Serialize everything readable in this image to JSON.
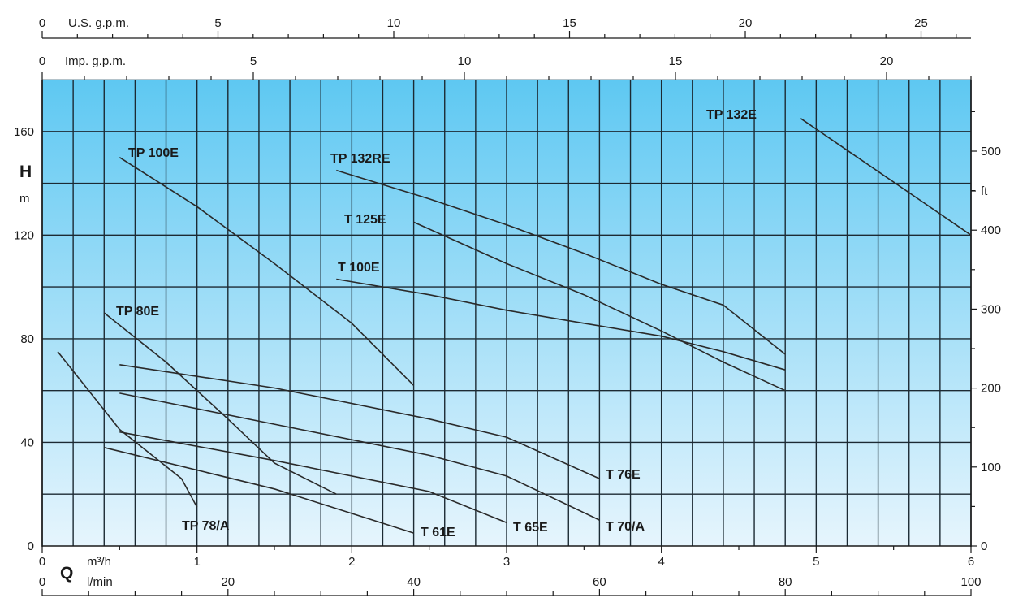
{
  "chart_data": {
    "type": "line",
    "title": "",
    "x_axes": {
      "primary": {
        "label": "Q",
        "unit": "m³/h",
        "range": [
          0,
          6
        ],
        "ticks": [
          "0",
          "1",
          "2",
          "3",
          "4",
          "5",
          "6"
        ]
      },
      "lmin": {
        "unit": "l/min",
        "range": [
          0,
          100
        ],
        "ticks": [
          "0",
          "20",
          "40",
          "60",
          "80",
          "100"
        ]
      },
      "us_gpm": {
        "unit": "U.S. g.p.m.",
        "ticks": [
          "0",
          "5",
          "10",
          "15",
          "20",
          "25"
        ]
      },
      "imp_gpm": {
        "unit": "Imp. g.p.m.",
        "ticks": [
          "0",
          "5",
          "10",
          "15",
          "20"
        ]
      }
    },
    "y_axes": {
      "left": {
        "label": "H",
        "unit": "m",
        "range": [
          0,
          180
        ],
        "ticks": [
          "0",
          "40",
          "80",
          "120",
          "160"
        ]
      },
      "right": {
        "unit": "ft",
        "ticks": [
          "0",
          "100",
          "200",
          "300",
          "400",
          "500"
        ]
      }
    },
    "grid": true,
    "series": [
      {
        "name": "TP 132E",
        "points": [
          [
            4.9,
            165
          ],
          [
            6.0,
            120
          ]
        ]
      },
      {
        "name": "TP 132RE",
        "points": [
          [
            1.9,
            145
          ],
          [
            2.5,
            134
          ],
          [
            3.0,
            124
          ],
          [
            3.5,
            113
          ],
          [
            4.0,
            101
          ],
          [
            4.4,
            93
          ],
          [
            4.8,
            74
          ]
        ]
      },
      {
        "name": "T 125E",
        "points": [
          [
            2.4,
            125
          ],
          [
            3.0,
            109
          ],
          [
            3.5,
            97
          ],
          [
            4.0,
            83
          ],
          [
            4.4,
            71
          ],
          [
            4.8,
            60
          ]
        ]
      },
      {
        "name": "T 100E",
        "points": [
          [
            1.9,
            103
          ],
          [
            2.5,
            97
          ],
          [
            3.0,
            91
          ],
          [
            3.5,
            86
          ],
          [
            4.0,
            81
          ],
          [
            4.4,
            75
          ],
          [
            4.8,
            68
          ]
        ]
      },
      {
        "name": "TP 100E",
        "points": [
          [
            0.5,
            150
          ],
          [
            1.0,
            131
          ],
          [
            1.5,
            109
          ],
          [
            2.0,
            86
          ],
          [
            2.4,
            62
          ]
        ]
      },
      {
        "name": "TP 80E",
        "points": [
          [
            0.4,
            90
          ],
          [
            0.8,
            71
          ],
          [
            1.2,
            49
          ],
          [
            1.5,
            32
          ],
          [
            1.9,
            20
          ]
        ]
      },
      {
        "name": "T 76E",
        "points": [
          [
            0.5,
            70
          ],
          [
            1.5,
            61
          ],
          [
            2.5,
            49
          ],
          [
            3.0,
            42
          ],
          [
            3.6,
            26
          ]
        ]
      },
      {
        "name": "T 70/A",
        "points": [
          [
            0.5,
            59
          ],
          [
            1.5,
            47
          ],
          [
            2.5,
            35
          ],
          [
            3.0,
            27
          ],
          [
            3.6,
            10
          ]
        ]
      },
      {
        "name": "T 65E",
        "points": [
          [
            0.5,
            44
          ],
          [
            1.5,
            33
          ],
          [
            2.5,
            21
          ],
          [
            3.0,
            9
          ]
        ]
      },
      {
        "name": "T 61E",
        "points": [
          [
            0.4,
            38
          ],
          [
            1.5,
            22
          ],
          [
            2.4,
            5
          ]
        ]
      },
      {
        "name": "TP 78/A",
        "points": [
          [
            0.1,
            75
          ],
          [
            0.5,
            45
          ],
          [
            0.9,
            26
          ],
          [
            1.0,
            15
          ]
        ]
      }
    ]
  }
}
